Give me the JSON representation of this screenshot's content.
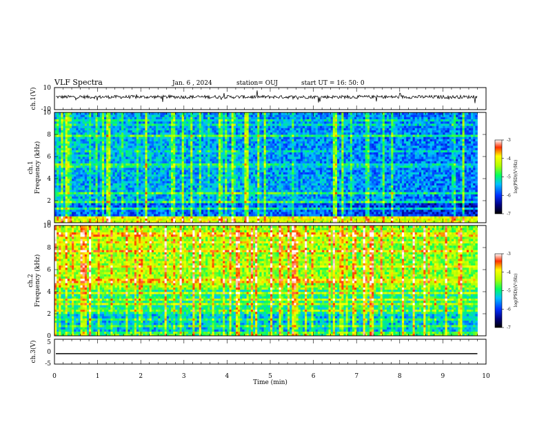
{
  "header": {
    "title": "VLF Spectra",
    "date": "Jan. 6 , 2024",
    "station": "station= OUJ",
    "start": "start UT = 16: 50: 0"
  },
  "chart_data": [
    {
      "type": "line",
      "name": "ch1-waveform",
      "ylabel": "ch.1(V)",
      "ylim": [
        -10,
        10
      ],
      "y_ticks": [
        "10",
        "-10"
      ],
      "xlim": [
        0,
        10
      ],
      "baseline": 1.5,
      "noise_amplitude": 1.5
    },
    {
      "type": "heatmap",
      "name": "ch1-spectrogram",
      "ylabel_line1": "ch.1",
      "ylabel_line2": "Frequency (kHz)",
      "ylim": [
        0,
        10
      ],
      "y_ticks": [
        "0",
        "2",
        "4",
        "6",
        "8",
        "10"
      ],
      "xlim": [
        0,
        9.8
      ],
      "colorbar": {
        "label": "log(PSD)(V²/Hz)",
        "range": [
          -7,
          -3
        ],
        "ticks": [
          "-3",
          "-4",
          "-5",
          "-6",
          "-7"
        ]
      }
    },
    {
      "type": "heatmap",
      "name": "ch2-spectrogram",
      "ylabel_line1": "ch.2",
      "ylabel_line2": "Frequency (kHz)",
      "ylim": [
        0,
        10
      ],
      "y_ticks": [
        "0",
        "2",
        "4",
        "6",
        "8",
        "10"
      ],
      "xlim": [
        0,
        9.8
      ],
      "colorbar": {
        "label": "log(PSD)(V²/Hz)",
        "range": [
          -7,
          -3
        ],
        "ticks": [
          "-3",
          "-4",
          "-5",
          "-6",
          "-7"
        ]
      }
    },
    {
      "type": "line",
      "name": "ch3-waveform",
      "ylabel": "ch.3(V)",
      "ylim": [
        -5,
        5
      ],
      "y_ticks": [
        "5",
        "0",
        "-5"
      ],
      "xlim": [
        0,
        10
      ],
      "constant_value": -0.8
    }
  ],
  "x_axis": {
    "label": "Time (min)",
    "ticks": [
      "0",
      "1",
      "2",
      "3",
      "4",
      "5",
      "6",
      "7",
      "8",
      "9",
      "10"
    ]
  }
}
